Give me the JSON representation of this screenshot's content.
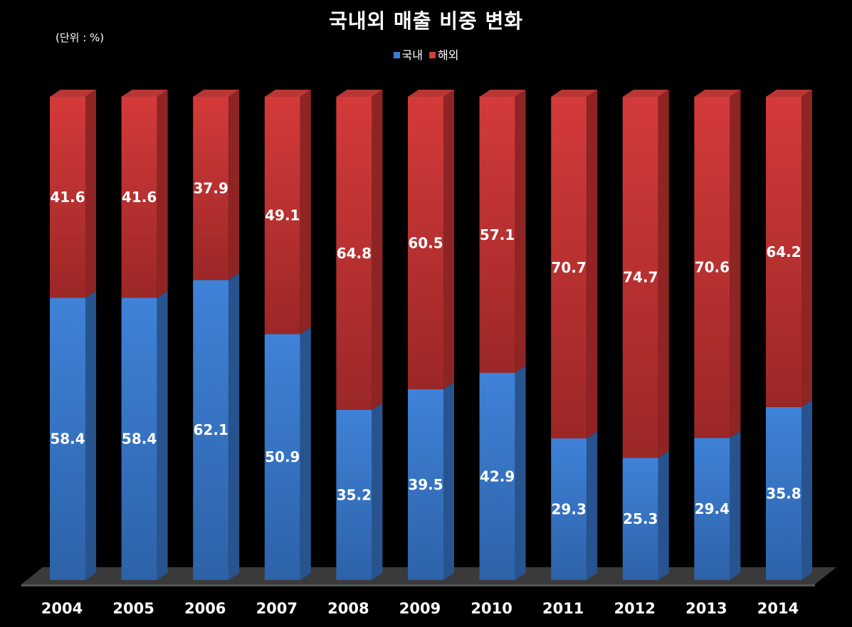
{
  "chart_data": {
    "type": "bar",
    "stacked": true,
    "title": "국내외 매출 비중 변화",
    "unit_label": "(단위 : %)",
    "legend_position": "top",
    "categories": [
      "2004",
      "2005",
      "2006",
      "2007",
      "2008",
      "2009",
      "2010",
      "2011",
      "2012",
      "2013",
      "2014"
    ],
    "series": [
      {
        "name": "국내",
        "color": "#3c7dd4",
        "values": [
          58.4,
          58.4,
          62.1,
          50.9,
          35.2,
          39.5,
          42.9,
          29.3,
          25.3,
          29.4,
          35.8
        ]
      },
      {
        "name": "해외",
        "color": "#d43c3c",
        "values": [
          41.6,
          41.6,
          37.9,
          49.1,
          64.8,
          60.5,
          57.1,
          70.7,
          74.7,
          70.6,
          64.2
        ]
      }
    ],
    "ylim": [
      0,
      100
    ],
    "grid": false
  }
}
